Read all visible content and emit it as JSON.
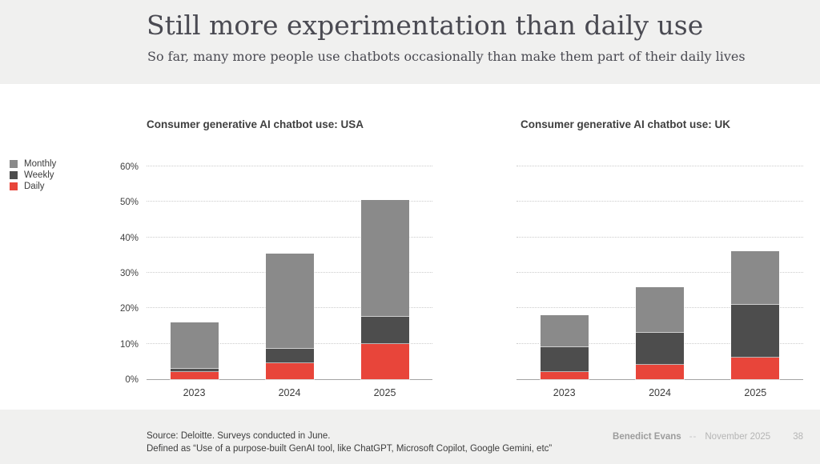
{
  "header": {
    "title": "Still more experimentation than daily use",
    "subtitle": "So far, many more people use chatbots occasionally than make them part of their daily lives"
  },
  "legend": {
    "items": [
      {
        "label": "Monthly",
        "color": "#8a8a8a"
      },
      {
        "label": "Weekly",
        "color": "#4d4d4d"
      },
      {
        "label": "Daily",
        "color": "#e8453a"
      }
    ]
  },
  "chart_data": [
    {
      "type": "bar",
      "stacked": true,
      "title": "Consumer generative AI chatbot use: USA",
      "categories": [
        "2023",
        "2024",
        "2025"
      ],
      "series": [
        {
          "name": "Daily",
          "color": "#e8453a",
          "values": [
            2,
            4.5,
            10
          ]
        },
        {
          "name": "Weekly",
          "color": "#4d4d4d",
          "values": [
            1,
            4,
            7.5
          ]
        },
        {
          "name": "Monthly",
          "color": "#8a8a8a",
          "values": [
            13,
            27,
            33
          ]
        }
      ],
      "totals": [
        16,
        35.5,
        50.5
      ],
      "ylabel": "",
      "xlabel": "",
      "ylim": [
        0,
        60
      ],
      "yticks": [
        0,
        10,
        20,
        30,
        40,
        50,
        60
      ],
      "ytick_suffix": "%",
      "show_y_labels": true,
      "grid": "dotted-horizontal",
      "legend_position": "left-outside"
    },
    {
      "type": "bar",
      "stacked": true,
      "title": "Consumer generative AI chatbot use: UK",
      "categories": [
        "2023",
        "2024",
        "2025"
      ],
      "series": [
        {
          "name": "Daily",
          "color": "#e8453a",
          "values": [
            2,
            4,
            6
          ]
        },
        {
          "name": "Weekly",
          "color": "#4d4d4d",
          "values": [
            7,
            9,
            15
          ]
        },
        {
          "name": "Monthly",
          "color": "#8a8a8a",
          "values": [
            9,
            13,
            15
          ]
        }
      ],
      "totals": [
        18,
        26,
        36
      ],
      "ylabel": "",
      "xlabel": "",
      "ylim": [
        0,
        60
      ],
      "yticks": [
        0,
        10,
        20,
        30,
        40,
        50,
        60
      ],
      "ytick_suffix": "%",
      "show_y_labels": false,
      "grid": "dotted-horizontal",
      "legend_position": "none"
    }
  ],
  "footer": {
    "source_line1": "Source: Deloitte. Surveys conducted in June.",
    "source_line2": "Defined as “Use of a purpose-built GenAI tool, like ChatGPT, Microsoft Copilot, Google Gemini, etc”",
    "author": "Benedict Evans",
    "dash": "--",
    "date": "November 2025",
    "page": "38"
  }
}
